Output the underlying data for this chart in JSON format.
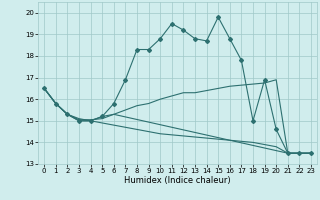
{
  "xlabel": "Humidex (Indice chaleur)",
  "bg_color": "#d0eded",
  "grid_color": "#a0c8c8",
  "line_color": "#2d7070",
  "xlim": [
    -0.5,
    23.5
  ],
  "ylim": [
    13,
    20.5
  ],
  "yticks": [
    13,
    14,
    15,
    16,
    17,
    18,
    19,
    20
  ],
  "xticks": [
    0,
    1,
    2,
    3,
    4,
    5,
    6,
    7,
    8,
    9,
    10,
    11,
    12,
    13,
    14,
    15,
    16,
    17,
    18,
    19,
    20,
    21,
    22,
    23
  ],
  "series": [
    {
      "x": [
        0,
        1,
        2,
        3,
        4,
        5,
        6,
        7,
        8,
        9,
        10,
        11,
        12,
        13,
        14,
        15,
        16,
        17,
        18,
        19,
        20,
        21,
        22,
        23
      ],
      "y": [
        16.5,
        15.8,
        15.3,
        15.0,
        15.0,
        15.2,
        15.8,
        16.9,
        18.3,
        18.3,
        18.8,
        19.5,
        19.2,
        18.8,
        18.7,
        19.8,
        18.8,
        17.8,
        15.0,
        16.9,
        14.6,
        13.5,
        13.5,
        13.5
      ],
      "has_markers": true
    },
    {
      "x": [
        0,
        1,
        2,
        3,
        4,
        5,
        6,
        7,
        8,
        9,
        10,
        11,
        12,
        13,
        14,
        15,
        16,
        17,
        18,
        19,
        20,
        21,
        22,
        23
      ],
      "y": [
        16.5,
        15.8,
        15.3,
        15.05,
        15.05,
        15.1,
        15.3,
        15.5,
        15.7,
        15.8,
        16.0,
        16.15,
        16.3,
        16.3,
        16.4,
        16.5,
        16.6,
        16.65,
        16.7,
        16.75,
        16.9,
        13.5,
        13.5,
        13.5
      ],
      "has_markers": false
    },
    {
      "x": [
        0,
        1,
        2,
        3,
        4,
        5,
        6,
        7,
        8,
        9,
        10,
        11,
        12,
        13,
        14,
        15,
        16,
        17,
        18,
        19,
        20,
        21,
        22,
        23
      ],
      "y": [
        16.5,
        15.8,
        15.3,
        15.1,
        15.0,
        14.9,
        14.8,
        14.7,
        14.6,
        14.5,
        14.4,
        14.35,
        14.3,
        14.25,
        14.2,
        14.15,
        14.1,
        14.05,
        14.0,
        13.9,
        13.8,
        13.5,
        13.5,
        13.5
      ],
      "has_markers": false
    },
    {
      "x": [
        0,
        1,
        2,
        3,
        4,
        5,
        6,
        21,
        22,
        23
      ],
      "y": [
        16.5,
        15.8,
        15.3,
        15.0,
        15.0,
        15.2,
        15.3,
        13.5,
        13.5,
        13.5
      ],
      "has_markers": false
    }
  ]
}
